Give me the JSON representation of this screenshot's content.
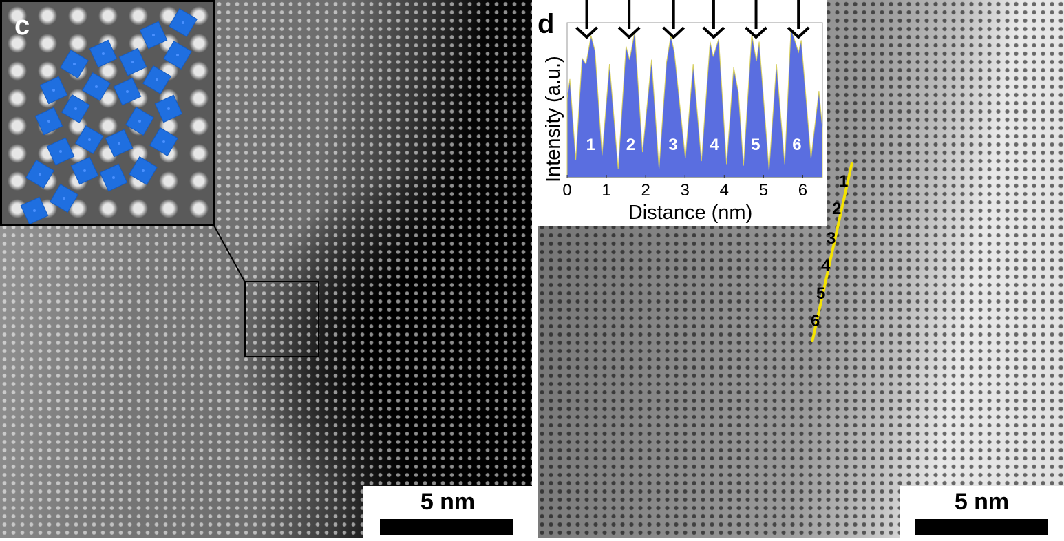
{
  "panel_c": {
    "letter": "c",
    "scale_bar": "5 nm"
  },
  "panel_d": {
    "letter": "d",
    "scale_bar": "5 nm",
    "line_labels": [
      "1",
      "2",
      "3",
      "4",
      "5",
      "6"
    ]
  },
  "colors": {
    "octahedra": "#1f6fe0",
    "profile_fill": "#5a6ee0",
    "line_profile": "#f5e400"
  },
  "chart_data": {
    "type": "area",
    "xlabel": "Distance (nm)",
    "ylabel": "Intensity (a.u.)",
    "xlim": [
      0,
      6.5
    ],
    "ylim": [
      0,
      1
    ],
    "x_ticks": [
      "0",
      "1",
      "2",
      "3",
      "4",
      "5",
      "6"
    ],
    "grid": false,
    "peak_labels": [
      {
        "text": "1",
        "x": 0.6
      },
      {
        "text": "2",
        "x": 1.62
      },
      {
        "text": "3",
        "x": 2.7
      },
      {
        "text": "4",
        "x": 3.75
      },
      {
        "text": "5",
        "x": 4.8
      },
      {
        "text": "6",
        "x": 5.85
      }
    ],
    "arrows_x": [
      0.5,
      1.58,
      2.71,
      3.73,
      4.81,
      5.89
    ],
    "x": [
      0,
      0.07,
      0.22,
      0.38,
      0.48,
      0.61,
      0.71,
      0.89,
      1.08,
      1.3,
      1.5,
      1.59,
      1.72,
      1.92,
      2.15,
      2.34,
      2.53,
      2.64,
      2.73,
      3.01,
      3.21,
      3.42,
      3.64,
      3.72,
      3.86,
      4.06,
      4.24,
      4.36,
      4.49,
      4.7,
      4.82,
      4.89,
      5.14,
      5.33,
      5.54,
      5.7,
      5.89,
      5.96,
      6.21,
      6.41,
      6.5
    ],
    "y": [
      0.53,
      0.66,
      0.12,
      0.8,
      0.76,
      0.95,
      0.85,
      0.15,
      0.76,
      0.06,
      0.88,
      0.79,
      0.98,
      0.17,
      0.79,
      0.06,
      0.77,
      0.95,
      0.84,
      0.13,
      0.76,
      0.11,
      0.91,
      0.81,
      0.93,
      0.09,
      0.74,
      0.57,
      0.08,
      0.96,
      0.78,
      0.91,
      0.05,
      0.76,
      0.09,
      1.0,
      0.84,
      0.92,
      0.13,
      0.58,
      0.33
    ]
  }
}
